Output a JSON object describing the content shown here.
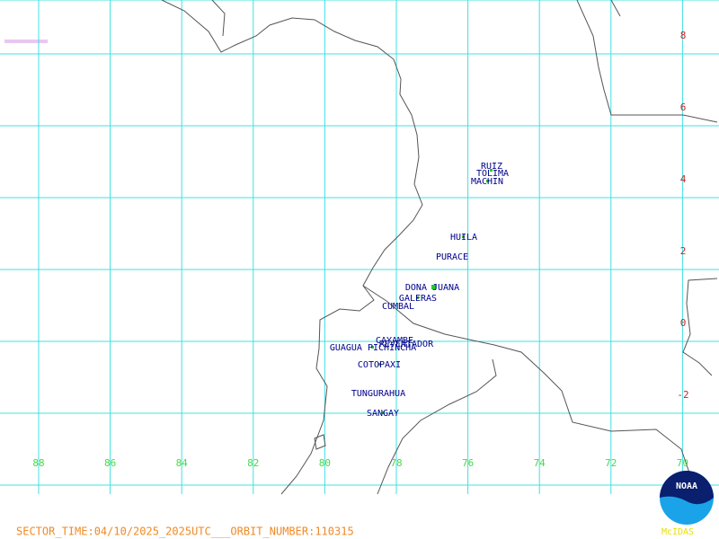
{
  "map": {
    "lat_labels": [
      8,
      6,
      4,
      2,
      0,
      -2
    ],
    "lon_labels": [
      88,
      86,
      84,
      82,
      80,
      78,
      76,
      74,
      72,
      70
    ],
    "volcanoes": [
      "RUIZ",
      "TOLIMA",
      "MACHIN",
      "HUILA",
      "PURACE",
      "DONA JUANA",
      "GALERAS",
      "CUMBAL",
      "CAYAMBE",
      "REVENTADOR",
      "GUAGUA PICHINCHA",
      "COTOPAXI",
      "TUNGURAHUA",
      "SANGAY"
    ],
    "footer": "SECTOR_TIME:04/10/2025_2025UTC___ORBIT_NUMBER:110315",
    "logo_text": "NOAA",
    "brand": "McIDAS"
  }
}
